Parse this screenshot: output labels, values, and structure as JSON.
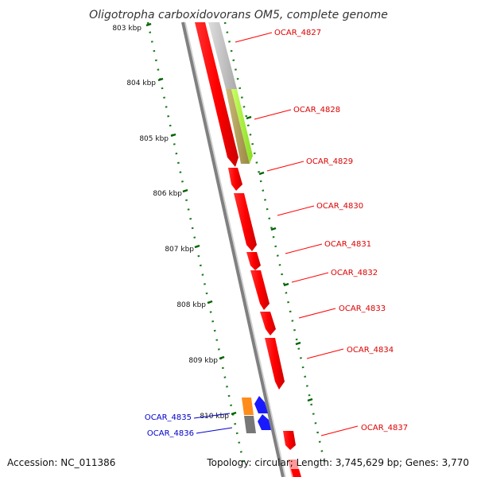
{
  "title": "Oligotropha carboxidovorans OM5, complete genome",
  "footer": {
    "accession": "Accession: NC_011386",
    "summary": "Topology: circular; Length: 3,745,629 bp; Genes: 3,770"
  },
  "colors": {
    "forward_gene": "#ff0000",
    "reverse_gene": "#0000ff",
    "tick": "#006400",
    "backbone": "#808080"
  },
  "ticks": [
    {
      "label": "803 kbp"
    },
    {
      "label": "804 kbp"
    },
    {
      "label": "805 kbp"
    },
    {
      "label": "806 kbp"
    },
    {
      "label": "807 kbp"
    },
    {
      "label": "808 kbp"
    },
    {
      "label": "809 kbp"
    },
    {
      "label": "810 kbp"
    }
  ],
  "genes": [
    {
      "id": "OCAR_4827",
      "color": "#ff0000"
    },
    {
      "id": "OCAR_4828",
      "color": "#ff0000"
    },
    {
      "id": "OCAR_4829",
      "color": "#ff0000"
    },
    {
      "id": "OCAR_4830",
      "color": "#ff0000"
    },
    {
      "id": "OCAR_4831",
      "color": "#ff0000"
    },
    {
      "id": "OCAR_4832",
      "color": "#ff0000"
    },
    {
      "id": "OCAR_4833",
      "color": "#ff0000"
    },
    {
      "id": "OCAR_4834",
      "color": "#ff0000"
    },
    {
      "id": "OCAR_4837",
      "color": "#ff0000"
    },
    {
      "id": "OCAR_4835",
      "color": "#0000cc"
    },
    {
      "id": "OCAR_4836",
      "color": "#0000cc"
    }
  ]
}
